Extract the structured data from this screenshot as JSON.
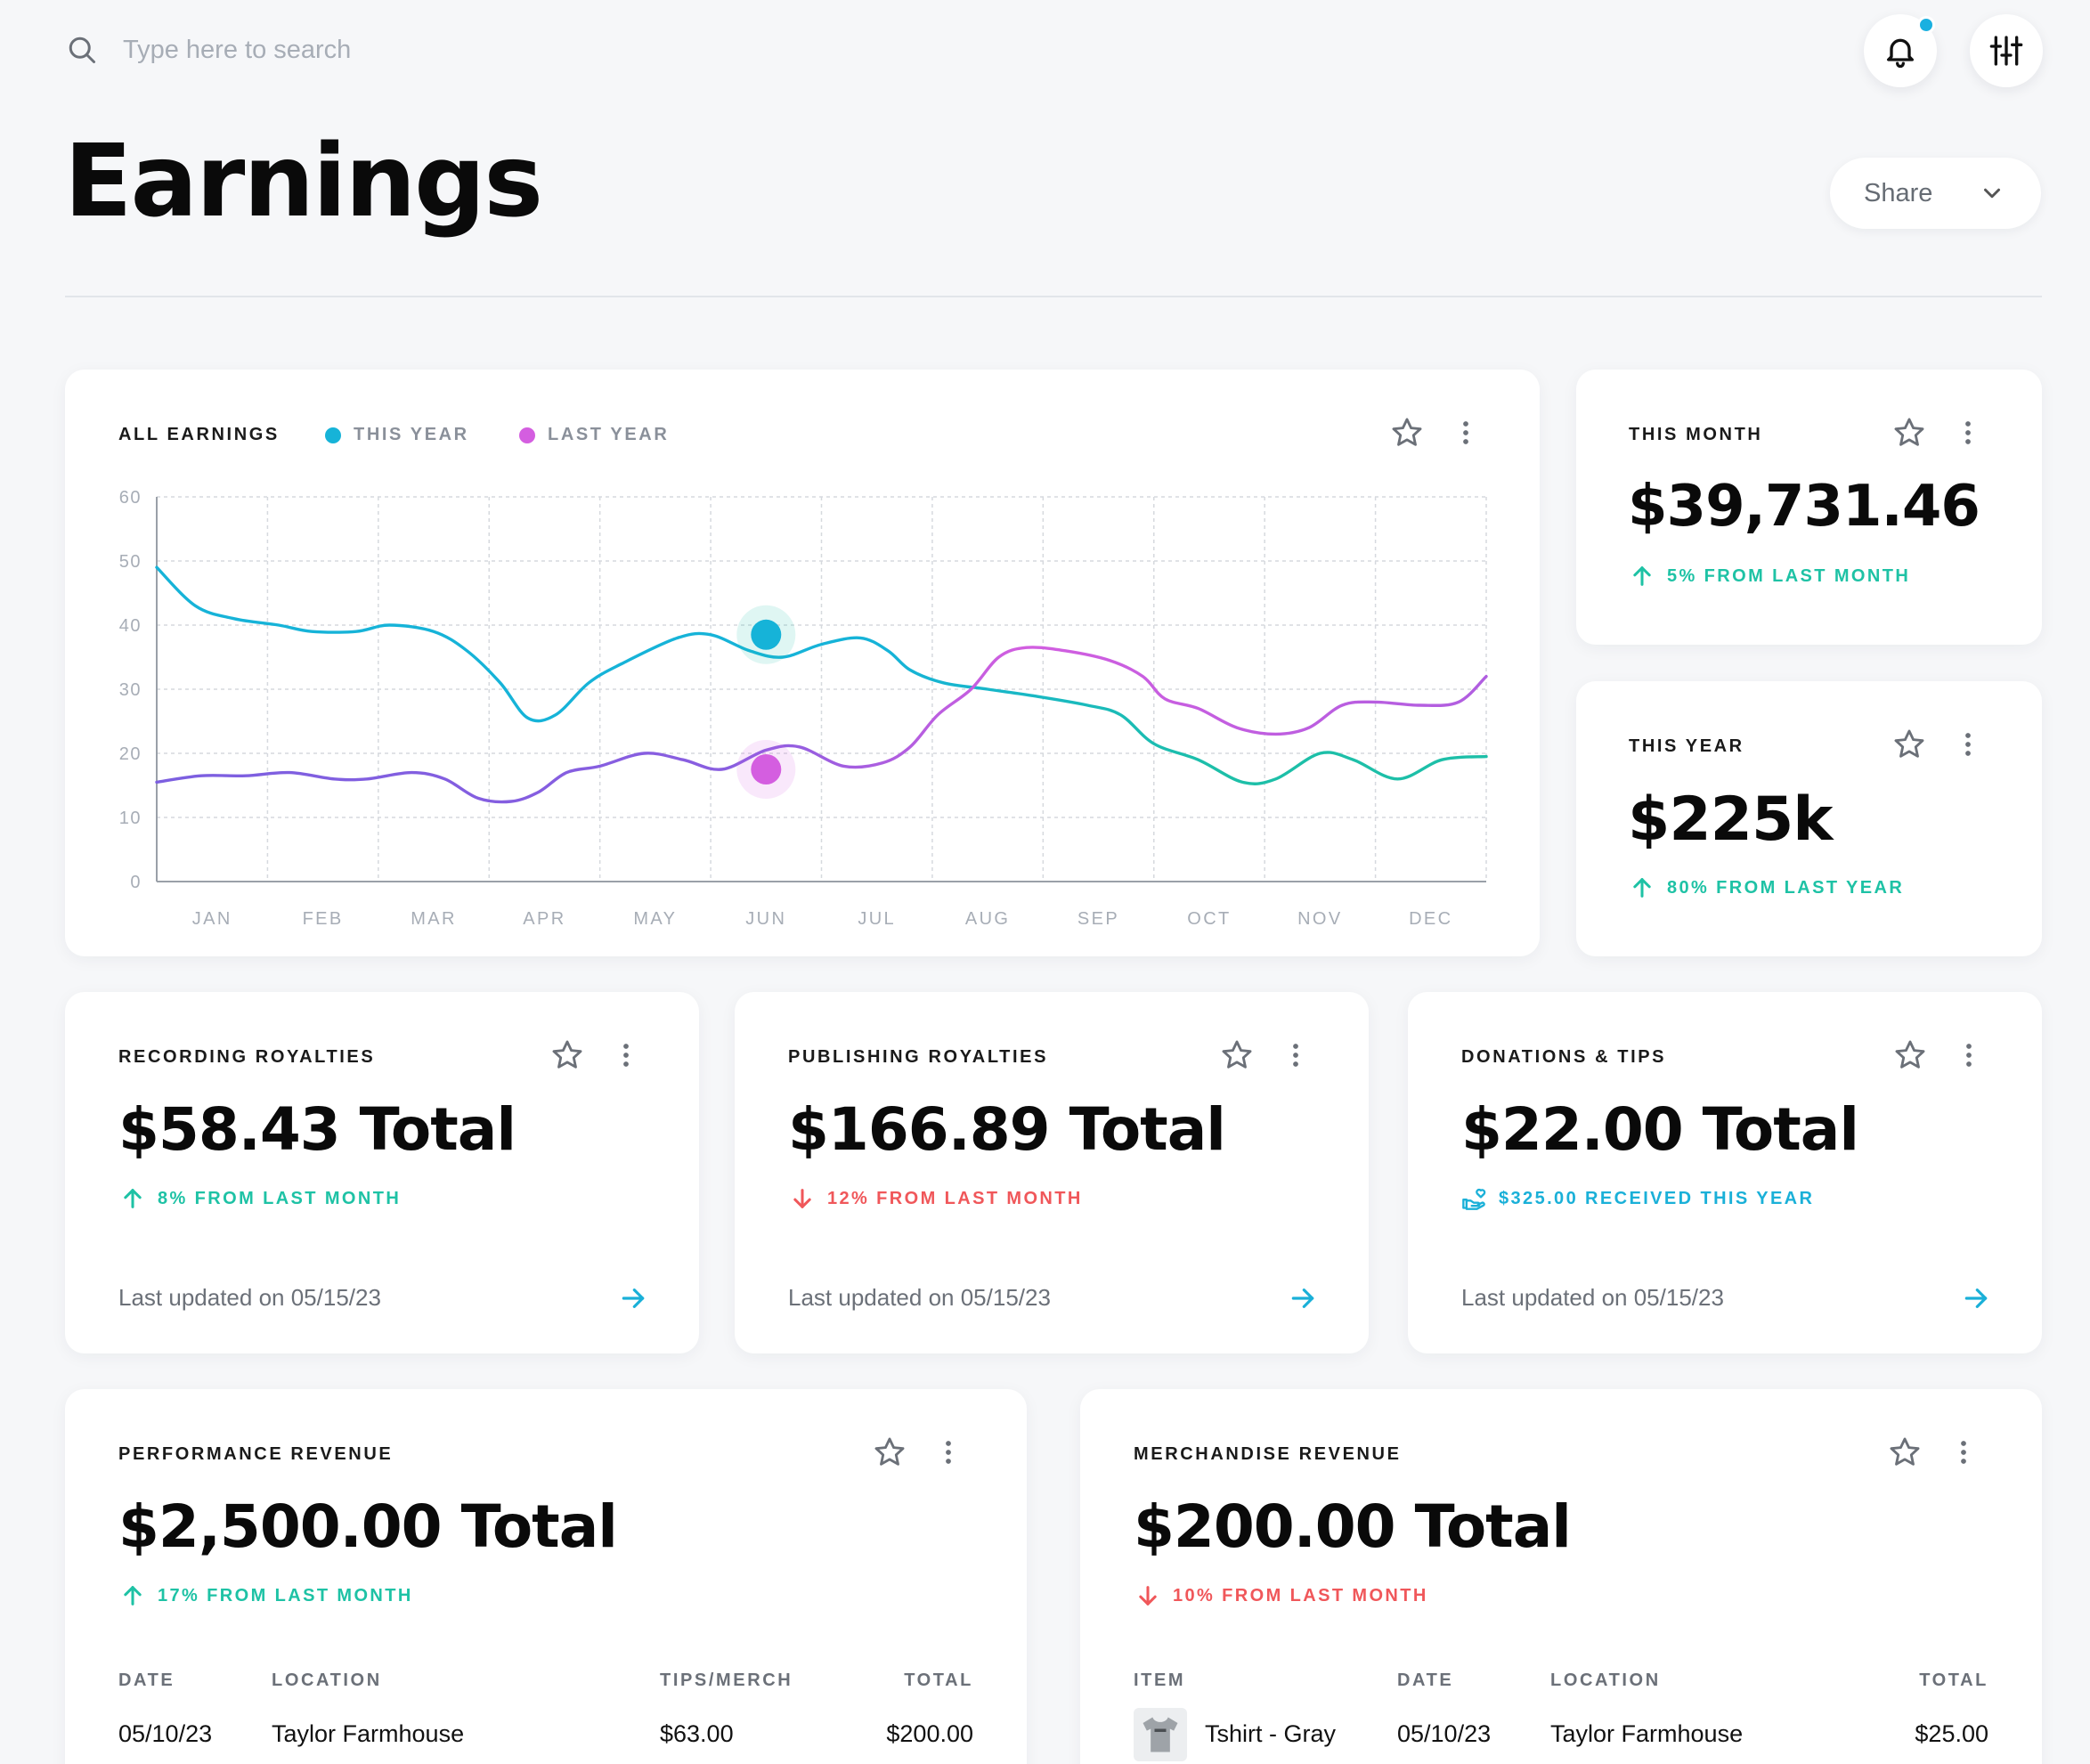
{
  "search": {
    "placeholder": "Type here to search"
  },
  "page": {
    "title": "Earnings",
    "share_label": "Share"
  },
  "colors": {
    "this_year": "#16b3d8",
    "last_year": "#a35ee0",
    "up": "#1ec2a5",
    "down": "#f0575a"
  },
  "chart_card": {
    "label": "ALL EARNINGS",
    "legend_this_year": "THIS YEAR",
    "legend_last_year": "LAST YEAR"
  },
  "chart_data": {
    "type": "line",
    "title": "ALL EARNINGS",
    "x": [
      "JAN",
      "FEB",
      "MAR",
      "APR",
      "MAY",
      "JUN",
      "JUL",
      "AUG",
      "SEP",
      "OCT",
      "NOV",
      "DEC"
    ],
    "yticks": [
      "0",
      "10",
      "20",
      "30",
      "40",
      "50",
      "60"
    ],
    "ylim": [
      0,
      60
    ],
    "grid": true,
    "series": [
      {
        "name": "THIS YEAR",
        "points": [
          [
            0,
            49
          ],
          [
            0.35,
            43
          ],
          [
            0.7,
            41
          ],
          [
            1.1,
            40
          ],
          [
            1.4,
            39
          ],
          [
            1.8,
            39
          ],
          [
            2.1,
            40
          ],
          [
            2.5,
            39
          ],
          [
            2.8,
            36
          ],
          [
            3.1,
            31
          ],
          [
            3.35,
            25.5
          ],
          [
            3.6,
            26
          ],
          [
            3.9,
            31
          ],
          [
            4.2,
            34
          ],
          [
            4.7,
            38
          ],
          [
            5.0,
            38.5
          ],
          [
            5.35,
            36
          ],
          [
            5.65,
            35
          ],
          [
            6.0,
            37
          ],
          [
            6.35,
            38
          ],
          [
            6.6,
            36
          ],
          [
            6.8,
            33
          ],
          [
            7.1,
            31
          ],
          [
            7.5,
            30
          ],
          [
            7.9,
            29
          ],
          [
            8.4,
            27.5
          ],
          [
            8.7,
            26
          ],
          [
            9.0,
            21.5
          ],
          [
            9.4,
            19
          ],
          [
            9.8,
            15.5
          ],
          [
            10.1,
            16
          ],
          [
            10.5,
            20
          ],
          [
            10.8,
            19
          ],
          [
            11.2,
            16
          ],
          [
            11.6,
            19
          ],
          [
            12.0,
            19.5
          ]
        ]
      },
      {
        "name": "LAST YEAR",
        "points": [
          [
            0,
            15.5
          ],
          [
            0.4,
            16.5
          ],
          [
            0.8,
            16.5
          ],
          [
            1.2,
            17
          ],
          [
            1.6,
            16
          ],
          [
            1.9,
            16
          ],
          [
            2.3,
            17
          ],
          [
            2.6,
            16
          ],
          [
            2.9,
            13
          ],
          [
            3.2,
            12.5
          ],
          [
            3.45,
            14
          ],
          [
            3.7,
            17
          ],
          [
            4.0,
            18
          ],
          [
            4.4,
            20
          ],
          [
            4.75,
            19
          ],
          [
            5.1,
            17.5
          ],
          [
            5.5,
            20.5
          ],
          [
            5.8,
            21
          ],
          [
            6.2,
            18
          ],
          [
            6.55,
            18.5
          ],
          [
            6.8,
            21
          ],
          [
            7.05,
            26
          ],
          [
            7.35,
            30
          ],
          [
            7.6,
            35
          ],
          [
            7.85,
            36.5
          ],
          [
            8.2,
            36
          ],
          [
            8.6,
            34.5
          ],
          [
            8.9,
            32
          ],
          [
            9.1,
            28.5
          ],
          [
            9.4,
            27
          ],
          [
            9.75,
            24
          ],
          [
            10.1,
            23
          ],
          [
            10.4,
            24
          ],
          [
            10.7,
            27.5
          ],
          [
            11.0,
            28
          ],
          [
            11.4,
            27.5
          ],
          [
            11.75,
            28
          ],
          [
            12.0,
            32
          ]
        ]
      }
    ],
    "highlights": [
      {
        "series": "THIS YEAR",
        "month": "JUN",
        "x": 5.5,
        "y": 38.5
      },
      {
        "series": "LAST YEAR",
        "month": "JUN",
        "x": 5.5,
        "y": 17.5
      }
    ]
  },
  "this_month": {
    "label": "THIS MONTH",
    "value": "$39,731.46",
    "trend": "5% FROM LAST MONTH"
  },
  "this_year": {
    "label": "THIS YEAR",
    "value": "$225k",
    "trend": "80% FROM LAST YEAR"
  },
  "recording": {
    "label": "RECORDING ROYALTIES",
    "value": "$58.43 Total",
    "trend": "8% FROM LAST MONTH",
    "updated": "Last updated on 05/15/23"
  },
  "publishing": {
    "label": "PUBLISHING ROYALTIES",
    "value": "$166.89 Total",
    "trend": "12% FROM LAST MONTH",
    "updated": "Last updated on 05/15/23"
  },
  "donations": {
    "label": "DONATIONS & TIPS",
    "value": "$22.00 Total",
    "trend": "$325.00 RECEIVED THIS YEAR",
    "updated": "Last updated on 05/15/23"
  },
  "performance": {
    "label": "PERFORMANCE REVENUE",
    "value": "$2,500.00 Total",
    "trend": "17% FROM LAST MONTH",
    "columns": [
      "DATE",
      "LOCATION",
      "TIPS/MERCH",
      "TOTAL"
    ],
    "rows": [
      [
        "05/10/23",
        "Taylor Farmhouse",
        "$63.00",
        "$200.00"
      ]
    ]
  },
  "merchandise": {
    "label": "MERCHANDISE REVENUE",
    "value": "$200.00 Total",
    "trend": "10% FROM LAST MONTH",
    "columns": [
      "ITEM",
      "DATE",
      "LOCATION",
      "TOTAL"
    ],
    "rows": [
      [
        "Tshirt - Gray",
        "05/10/23",
        "Taylor Farmhouse",
        "$25.00"
      ]
    ]
  }
}
